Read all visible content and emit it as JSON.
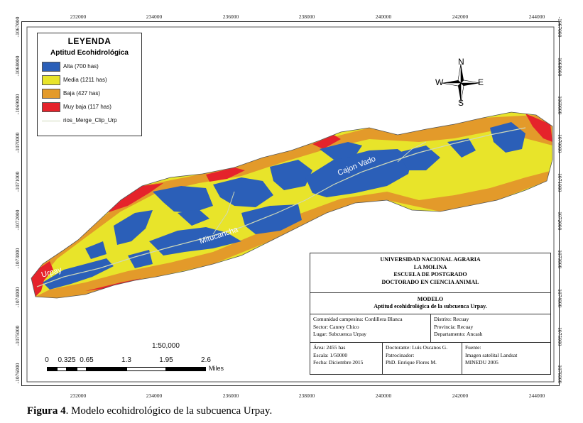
{
  "colors": {
    "alta": "#2b5fb8",
    "media": "#e8e42a",
    "baja": "#e39a2a",
    "muy_baja": "#e5232b",
    "river": "#cfd9b8"
  },
  "axes": {
    "x_ticks": [
      "232000",
      "234000",
      "236000",
      "238000",
      "240000",
      "242000",
      "244000"
    ],
    "y_ticks": [
      "-1067000",
      "-1068000",
      "-1069000",
      "-1070000",
      "-1071000",
      "-1072000",
      "-1073000",
      "-1074000",
      "-1075000",
      "-1076000"
    ]
  },
  "legend": {
    "title": "LEYENDA",
    "subtitle": "Aptitud Ecohidrológica",
    "items": [
      {
        "label": "Alta (700 has)",
        "color": "#2b5fb8"
      },
      {
        "label": "Media (1211 has)",
        "color": "#e8e42a"
      },
      {
        "label": "Baja (427 has)",
        "color": "#e39a2a"
      },
      {
        "label": "Muy baja (117 has)",
        "color": "#e5232b"
      }
    ],
    "river_label": "rios_Merge_Clip_Urp"
  },
  "compass": {
    "n": "N",
    "s": "S",
    "e": "E",
    "w": "W"
  },
  "places": {
    "cajon_vado": "Cajon Vado",
    "mitucancha": "Mitucancha",
    "urpay": "Urpay"
  },
  "scale": {
    "ratio": "1:50,000",
    "numbers": [
      "0",
      "0.325",
      "0.65",
      "1.3",
      "1.95",
      "2.6"
    ],
    "unit": "Miles"
  },
  "cartouche": {
    "institution": [
      "UNIVERSIDAD NACIONAL AGRARIA",
      "LA MOLINA",
      "ESCUELA DE POSTGRADO",
      "DOCTORADO EN CIENCIA ANIMAL"
    ],
    "model_title": "MODELO",
    "model_sub": "Aptitud ecohidrológica de la subcuenca Urpay.",
    "left_info": [
      "Comunidad campesina: Cordillera Blanca",
      "Sector: Canrey Chico",
      "Lugar: Subcuenca Urpay"
    ],
    "right_info": [
      "Distrito: Recuay",
      "Provincia: Recuay",
      "Departamento: Ancash"
    ],
    "bottom_a": [
      "Área: 2455 has",
      "Escala: 1/50000",
      "Fecha: Diciembre 2015"
    ],
    "bottom_b": [
      "Doctorante: Luis Oscanos G.",
      "Patrocinador:",
      "PhD. Enrique Flores M."
    ],
    "bottom_c": [
      "Fuente:",
      "Imagen satelital Landsat",
      "MINEDU 2005"
    ]
  },
  "caption": {
    "label": "Figura 4",
    "text": ". Modelo ecohidrológico de la subcuenca Urpay."
  }
}
